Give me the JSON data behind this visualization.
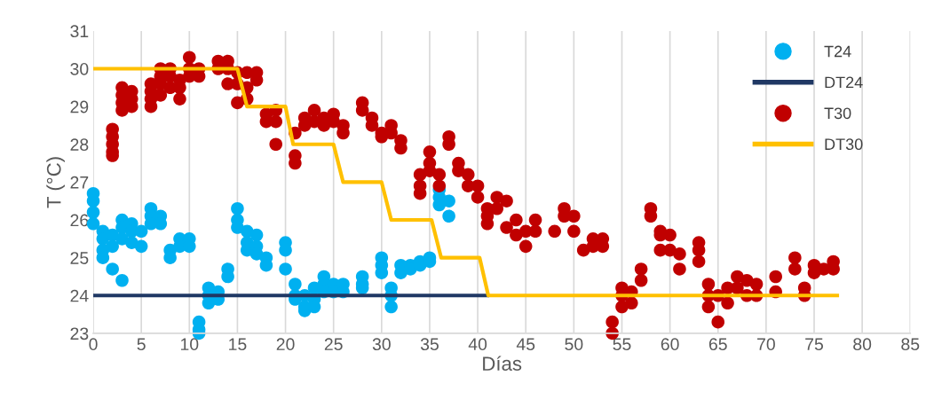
{
  "chart_data": {
    "type": "scatter",
    "xlabel": "Días",
    "ylabel": "T (°C)",
    "xlim": [
      0,
      85
    ],
    "xticks": [
      0,
      5,
      10,
      15,
      20,
      25,
      30,
      35,
      40,
      45,
      50,
      55,
      60,
      65,
      70,
      75,
      80,
      85
    ],
    "ylim": [
      23,
      31
    ],
    "yticks": [
      23,
      24,
      25,
      26,
      27,
      28,
      29,
      30,
      31
    ],
    "grid": "x",
    "legend": "top right",
    "series": [
      {
        "name": "T24",
        "marker": "circle",
        "color": "#00b0f0",
        "x": [
          0,
          0,
          0,
          0,
          1,
          1,
          1,
          1,
          2,
          2,
          2,
          3,
          3,
          3,
          3,
          4,
          4,
          4,
          5,
          5,
          6,
          6,
          6,
          7,
          7,
          8,
          8,
          9,
          9,
          10,
          10,
          11,
          11,
          11,
          12,
          12,
          12,
          13,
          13,
          14,
          14,
          15,
          15,
          15,
          16,
          16,
          16,
          17,
          17,
          17,
          18,
          18,
          20,
          20,
          20,
          21,
          21,
          21,
          22,
          22,
          22,
          23,
          23,
          23,
          24,
          24,
          24,
          25,
          25,
          26,
          26,
          28,
          28,
          28,
          30,
          30,
          30,
          31,
          31,
          31,
          32,
          32,
          33,
          33,
          34,
          34,
          35,
          35,
          36,
          36,
          36,
          37,
          37
        ],
        "values": [
          26.7,
          26.5,
          26.2,
          25.9,
          25.7,
          25.5,
          25.2,
          25.0,
          25.6,
          25.3,
          24.7,
          26.0,
          25.8,
          25.5,
          24.4,
          25.9,
          25.7,
          25.4,
          25.7,
          25.3,
          26.3,
          26.1,
          25.9,
          26.1,
          25.9,
          25.2,
          25.0,
          25.5,
          25.3,
          25.5,
          25.3,
          23.3,
          23.1,
          23.0,
          24.2,
          24.0,
          23.8,
          24.1,
          23.9,
          24.7,
          24.5,
          26.3,
          26.0,
          25.8,
          25.7,
          25.4,
          25.2,
          25.6,
          25.3,
          25.1,
          25.0,
          24.8,
          25.4,
          25.2,
          24.7,
          24.3,
          24.0,
          23.9,
          24.0,
          23.7,
          23.6,
          24.2,
          23.9,
          23.7,
          24.5,
          24.3,
          24.1,
          24.3,
          24.1,
          24.3,
          24.1,
          24.5,
          24.3,
          24.2,
          25.0,
          24.8,
          24.6,
          24.2,
          24.0,
          23.7,
          24.8,
          24.6,
          24.8,
          24.7,
          24.9,
          24.8,
          25.0,
          24.9,
          26.8,
          26.6,
          26.4,
          26.5,
          26.1
        ]
      },
      {
        "name": "DT24",
        "type": "line",
        "marker": "none",
        "color": "#203864",
        "x": [
          0,
          41
        ],
        "values": [
          24,
          24
        ]
      },
      {
        "name": "T30",
        "marker": "circle",
        "color": "#c00000",
        "x": [
          2,
          2,
          2,
          2,
          2,
          3,
          3,
          3,
          3,
          4,
          4,
          4,
          6,
          6,
          6,
          6,
          7,
          7,
          7,
          7,
          8,
          8,
          8,
          9,
          9,
          9,
          10,
          10,
          10,
          11,
          11,
          13,
          13,
          14,
          14,
          14,
          15,
          15,
          15,
          16,
          16,
          16,
          17,
          17,
          18,
          18,
          19,
          19,
          19,
          21,
          21,
          21,
          22,
          22,
          23,
          23,
          24,
          24,
          25,
          25,
          26,
          26,
          28,
          28,
          29,
          29,
          30,
          30,
          31,
          31,
          32,
          32,
          34,
          34,
          34,
          35,
          35,
          35,
          36,
          36,
          37,
          37,
          38,
          38,
          39,
          39,
          40,
          40,
          41,
          41,
          41,
          42,
          42,
          43,
          43,
          44,
          44,
          45,
          45,
          46,
          46,
          48,
          49,
          49,
          50,
          50,
          51,
          52,
          52,
          53,
          53,
          54,
          54,
          55,
          55,
          55,
          56,
          56,
          57,
          57,
          58,
          58,
          59,
          59,
          59,
          60,
          60,
          61,
          61,
          63,
          63,
          63,
          64,
          64,
          64,
          65,
          65,
          66,
          66,
          67,
          67,
          68,
          68,
          69,
          69,
          71,
          71,
          73,
          73,
          74,
          74,
          75,
          75,
          76,
          77,
          77
        ],
        "values": [
          28.4,
          28.2,
          28.0,
          27.8,
          27.7,
          29.5,
          29.3,
          29.1,
          28.9,
          29.4,
          29.2,
          29.0,
          29.6,
          29.4,
          29.2,
          29.0,
          30.0,
          29.8,
          29.6,
          29.3,
          30.0,
          29.8,
          29.5,
          29.7,
          29.5,
          29.2,
          30.3,
          30.0,
          29.8,
          30.0,
          29.8,
          30.2,
          30.0,
          30.2,
          30.0,
          29.6,
          29.9,
          29.6,
          29.1,
          29.9,
          29.5,
          29.2,
          29.9,
          29.7,
          28.8,
          28.6,
          28.9,
          28.6,
          28.0,
          28.3,
          27.7,
          27.5,
          28.7,
          28.5,
          28.9,
          28.6,
          28.7,
          28.5,
          28.8,
          28.6,
          28.5,
          28.3,
          29.1,
          28.9,
          28.7,
          28.5,
          28.3,
          28.2,
          28.5,
          28.3,
          28.1,
          27.9,
          27.2,
          26.9,
          26.7,
          27.8,
          27.5,
          27.3,
          27.2,
          26.9,
          28.2,
          28.0,
          27.5,
          27.3,
          27.2,
          26.9,
          26.9,
          26.6,
          26.3,
          26.1,
          25.9,
          26.6,
          26.3,
          26.5,
          25.8,
          26.0,
          25.6,
          25.7,
          25.3,
          26.0,
          25.7,
          25.7,
          26.3,
          26.1,
          26.1,
          25.7,
          25.2,
          25.5,
          25.3,
          25.5,
          25.3,
          23.3,
          23.0,
          24.2,
          24.0,
          23.7,
          24.1,
          23.8,
          24.7,
          24.4,
          26.3,
          26.1,
          25.7,
          25.6,
          25.2,
          25.6,
          25.2,
          25.1,
          24.7,
          25.4,
          25.2,
          24.9,
          24.3,
          24.0,
          23.7,
          24.0,
          23.3,
          24.2,
          23.8,
          24.5,
          24.2,
          24.4,
          24.0,
          24.3,
          24.0,
          24.5,
          24.1,
          25.0,
          24.7,
          24.2,
          24.0,
          24.8,
          24.6,
          24.7,
          24.9,
          24.7
        ]
      },
      {
        "name": "DT30",
        "type": "line",
        "marker": "none",
        "color": "#ffc000",
        "x": [
          0,
          15,
          16,
          20,
          20.8,
          25,
          26,
          30,
          31,
          35.2,
          36.2,
          40.2,
          41.1,
          77.4
        ],
        "values": [
          30,
          30,
          29,
          29,
          28,
          28,
          27,
          27,
          26,
          26,
          25,
          25,
          24,
          24
        ]
      }
    ]
  }
}
